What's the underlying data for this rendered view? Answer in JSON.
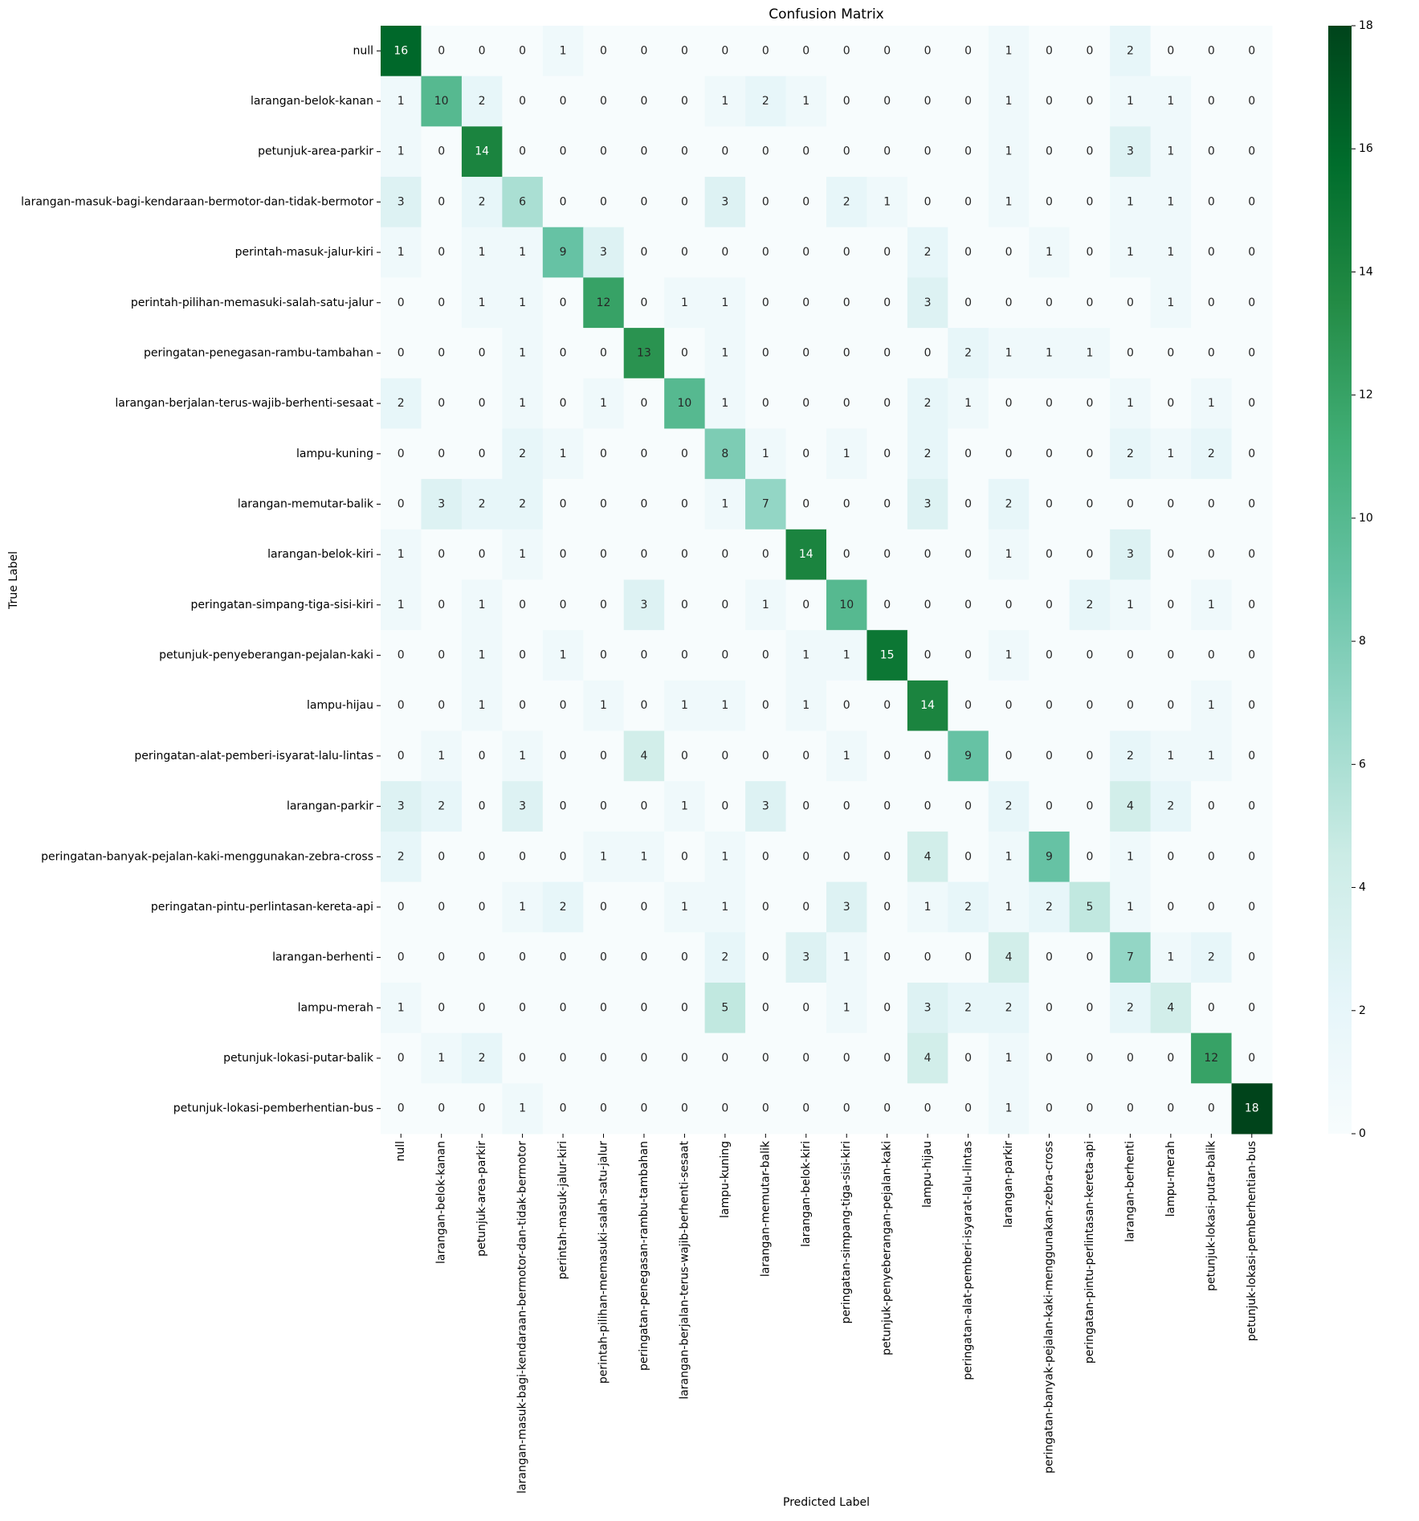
{
  "chart_data": {
    "type": "heatmap",
    "title": "Confusion Matrix",
    "xlabel": "Predicted Label",
    "ylabel": "True Label",
    "categories": [
      "null",
      "larangan-belok-kanan",
      "petunjuk-area-parkir",
      "larangan-masuk-bagi-kendaraan-bermotor-dan-tidak-bermotor",
      "perintah-masuk-jalur-kiri",
      "perintah-pilihan-memasuki-salah-satu-jalur",
      "peringatan-penegasan-rambu-tambahan",
      "larangan-berjalan-terus-wajib-berhenti-sesaat",
      "lampu-kuning",
      "larangan-memutar-balik",
      "larangan-belok-kiri",
      "peringatan-simpang-tiga-sisi-kiri",
      "petunjuk-penyeberangan-pejalan-kaki",
      "lampu-hijau",
      "peringatan-alat-pemberi-isyarat-lalu-lintas",
      "larangan-parkir",
      "peringatan-banyak-pejalan-kaki-menggunakan-zebra-cross",
      "peringatan-pintu-perlintasan-kereta-api",
      "larangan-berhenti",
      "lampu-merah",
      "petunjuk-lokasi-putar-balik",
      "petunjuk-lokasi-pemberhentian-bus"
    ],
    "values": [
      [
        16,
        0,
        0,
        0,
        1,
        0,
        0,
        0,
        0,
        0,
        0,
        0,
        0,
        0,
        0,
        1,
        0,
        0,
        2,
        0,
        0,
        0
      ],
      [
        1,
        10,
        2,
        0,
        0,
        0,
        0,
        0,
        1,
        2,
        1,
        0,
        0,
        0,
        0,
        1,
        0,
        0,
        1,
        1,
        0,
        0
      ],
      [
        1,
        0,
        14,
        0,
        0,
        0,
        0,
        0,
        0,
        0,
        0,
        0,
        0,
        0,
        0,
        1,
        0,
        0,
        3,
        1,
        0,
        0
      ],
      [
        3,
        0,
        2,
        6,
        0,
        0,
        0,
        0,
        3,
        0,
        0,
        2,
        1,
        0,
        0,
        1,
        0,
        0,
        1,
        1,
        0,
        0
      ],
      [
        1,
        0,
        1,
        1,
        9,
        3,
        0,
        0,
        0,
        0,
        0,
        0,
        0,
        2,
        0,
        0,
        1,
        0,
        1,
        1,
        0,
        0
      ],
      [
        0,
        0,
        1,
        1,
        0,
        12,
        0,
        1,
        1,
        0,
        0,
        0,
        0,
        3,
        0,
        0,
        0,
        0,
        0,
        1,
        0,
        0
      ],
      [
        0,
        0,
        0,
        1,
        0,
        0,
        13,
        0,
        1,
        0,
        0,
        0,
        0,
        0,
        2,
        1,
        1,
        1,
        0,
        0,
        0,
        0
      ],
      [
        2,
        0,
        0,
        1,
        0,
        1,
        0,
        10,
        1,
        0,
        0,
        0,
        0,
        2,
        1,
        0,
        0,
        0,
        1,
        0,
        1,
        0
      ],
      [
        0,
        0,
        0,
        2,
        1,
        0,
        0,
        0,
        8,
        1,
        0,
        1,
        0,
        2,
        0,
        0,
        0,
        0,
        2,
        1,
        2,
        0
      ],
      [
        0,
        3,
        2,
        2,
        0,
        0,
        0,
        0,
        1,
        7,
        0,
        0,
        0,
        3,
        0,
        2,
        0,
        0,
        0,
        0,
        0,
        0
      ],
      [
        1,
        0,
        0,
        1,
        0,
        0,
        0,
        0,
        0,
        0,
        14,
        0,
        0,
        0,
        0,
        1,
        0,
        0,
        3,
        0,
        0,
        0
      ],
      [
        1,
        0,
        1,
        0,
        0,
        0,
        3,
        0,
        0,
        1,
        0,
        10,
        0,
        0,
        0,
        0,
        0,
        2,
        1,
        0,
        1,
        0
      ],
      [
        0,
        0,
        1,
        0,
        1,
        0,
        0,
        0,
        0,
        0,
        1,
        1,
        15,
        0,
        0,
        1,
        0,
        0,
        0,
        0,
        0,
        0
      ],
      [
        0,
        0,
        1,
        0,
        0,
        1,
        0,
        1,
        1,
        0,
        1,
        0,
        0,
        14,
        0,
        0,
        0,
        0,
        0,
        0,
        1,
        0
      ],
      [
        0,
        1,
        0,
        1,
        0,
        0,
        4,
        0,
        0,
        0,
        0,
        1,
        0,
        0,
        9,
        0,
        0,
        0,
        2,
        1,
        1,
        0
      ],
      [
        3,
        2,
        0,
        3,
        0,
        0,
        0,
        1,
        0,
        3,
        0,
        0,
        0,
        0,
        0,
        2,
        0,
        0,
        4,
        2,
        0,
        0
      ],
      [
        2,
        0,
        0,
        0,
        0,
        1,
        1,
        0,
        1,
        0,
        0,
        0,
        0,
        4,
        0,
        1,
        9,
        0,
        1,
        0,
        0,
        0
      ],
      [
        0,
        0,
        0,
        1,
        2,
        0,
        0,
        1,
        1,
        0,
        0,
        3,
        0,
        1,
        2,
        1,
        2,
        5,
        1,
        0,
        0,
        0
      ],
      [
        0,
        0,
        0,
        0,
        0,
        0,
        0,
        0,
        2,
        0,
        3,
        1,
        0,
        0,
        0,
        4,
        0,
        0,
        7,
        1,
        2,
        0
      ],
      [
        1,
        0,
        0,
        0,
        0,
        0,
        0,
        0,
        5,
        0,
        0,
        1,
        0,
        3,
        2,
        2,
        0,
        0,
        2,
        4,
        0,
        0
      ],
      [
        0,
        1,
        2,
        0,
        0,
        0,
        0,
        0,
        0,
        0,
        0,
        0,
        0,
        4,
        0,
        1,
        0,
        0,
        0,
        0,
        12,
        0
      ],
      [
        0,
        0,
        0,
        1,
        0,
        0,
        0,
        0,
        0,
        0,
        0,
        0,
        0,
        0,
        0,
        1,
        0,
        0,
        0,
        0,
        0,
        18
      ]
    ],
    "clim": [
      0,
      18
    ],
    "cticks": [
      0,
      2,
      4,
      6,
      8,
      10,
      12,
      14,
      16,
      18
    ],
    "colormap": [
      "#f7fcfd",
      "#e5f5f9",
      "#ccece6",
      "#99d8c9",
      "#66c2a4",
      "#41ae76",
      "#238b45",
      "#006d2c",
      "#00441b"
    ]
  }
}
